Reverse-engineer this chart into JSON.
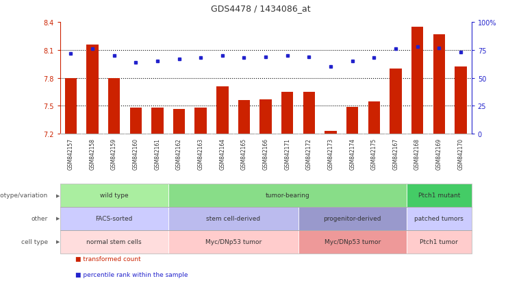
{
  "title": "GDS4478 / 1434086_at",
  "samples": [
    "GSM842157",
    "GSM842158",
    "GSM842159",
    "GSM842160",
    "GSM842161",
    "GSM842162",
    "GSM842163",
    "GSM842164",
    "GSM842165",
    "GSM842166",
    "GSM842171",
    "GSM842172",
    "GSM842173",
    "GSM842174",
    "GSM842175",
    "GSM842167",
    "GSM842168",
    "GSM842169",
    "GSM842170"
  ],
  "bar_values": [
    7.8,
    8.16,
    7.8,
    7.48,
    7.48,
    7.47,
    7.48,
    7.71,
    7.56,
    7.57,
    7.65,
    7.65,
    7.23,
    7.49,
    7.55,
    7.9,
    8.35,
    8.27,
    7.92
  ],
  "pct_values": [
    72,
    76,
    70,
    64,
    65,
    67,
    68,
    70,
    68,
    69,
    70,
    69,
    60,
    65,
    68,
    76,
    78,
    77,
    73
  ],
  "ymin": 7.2,
  "ymax": 8.4,
  "yticks_left": [
    7.2,
    7.5,
    7.8,
    8.1,
    8.4
  ],
  "yticks_right": [
    0,
    25,
    50,
    75,
    100
  ],
  "ytick_labels_right": [
    "0",
    "25",
    "50",
    "75",
    "100%"
  ],
  "hlines": [
    7.5,
    7.8,
    8.1
  ],
  "bar_color": "#cc2200",
  "pct_color": "#2222cc",
  "annotation_rows": [
    {
      "label": "genotype/variation",
      "sections": [
        {
          "text": "wild type",
          "start": 0,
          "end": 4,
          "color": "#aaeea0"
        },
        {
          "text": "tumor-bearing",
          "start": 5,
          "end": 15,
          "color": "#88dd88"
        },
        {
          "text": "Ptch1 mutant",
          "start": 16,
          "end": 18,
          "color": "#44cc66"
        }
      ]
    },
    {
      "label": "other",
      "sections": [
        {
          "text": "FACS-sorted",
          "start": 0,
          "end": 4,
          "color": "#ccccff"
        },
        {
          "text": "stem cell-derived",
          "start": 5,
          "end": 10,
          "color": "#bbbbee"
        },
        {
          "text": "progenitor-derived",
          "start": 11,
          "end": 15,
          "color": "#9999cc"
        },
        {
          "text": "patched tumors",
          "start": 16,
          "end": 18,
          "color": "#ccccff"
        }
      ]
    },
    {
      "label": "cell type",
      "sections": [
        {
          "text": "normal stem cells",
          "start": 0,
          "end": 4,
          "color": "#ffdddd"
        },
        {
          "text": "Myc/DNp53 tumor",
          "start": 5,
          "end": 10,
          "color": "#ffcccc"
        },
        {
          "text": "Myc/DNp53 tumor",
          "start": 11,
          "end": 15,
          "color": "#ee9999"
        },
        {
          "text": "Ptch1 tumor",
          "start": 16,
          "end": 18,
          "color": "#ffcccc"
        }
      ]
    }
  ],
  "legend_items": [
    {
      "color": "#cc2200",
      "label": "transformed count"
    },
    {
      "color": "#2222cc",
      "label": "percentile rank within the sample"
    }
  ]
}
